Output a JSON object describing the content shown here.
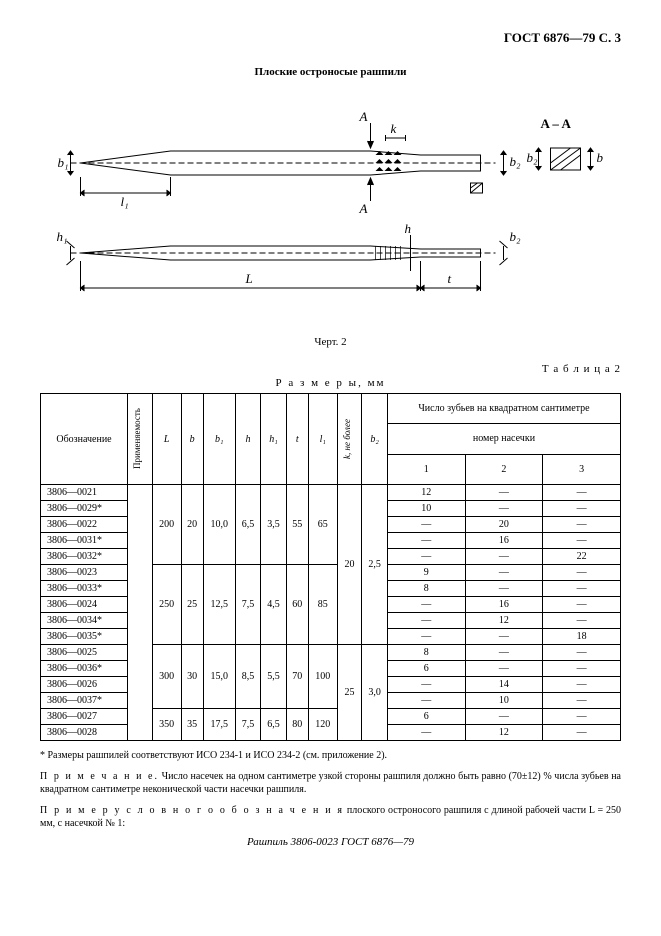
{
  "header": "ГОСТ 6876—79 С. 3",
  "title": "Плоские остроносые рашпили",
  "figcaption": "Черт. 2",
  "tablelabel": "Т а б л и ц а 2",
  "dimslabel": "Р а з м е р ы, мм",
  "diagram": {
    "labels": {
      "A": "A",
      "Am": "A",
      "AA": "A – A",
      "k": "k",
      "b1": "b₁",
      "b2": "b₂",
      "b": "b",
      "l1": "l₁",
      "h1": "h₁",
      "h": "h",
      "L": "L",
      "t": "t"
    }
  },
  "thead": {
    "c1": "Обозначение",
    "c2": "Применяемость",
    "c3": "L",
    "c4": "b",
    "c5": "b₁",
    "c6": "h",
    "c7": "h₁",
    "c8": "t",
    "c9": "l₁",
    "c10": "k, не более",
    "c11": "b₂",
    "teeth": "Число зубьев на квадратном сантиметре",
    "notch": "номер насечки",
    "n1": "1",
    "n2": "2",
    "n3": "3"
  },
  "rows": [
    {
      "d": "3806—0021",
      "n1": "12",
      "n2": "—",
      "n3": "—"
    },
    {
      "d": "3806—0029*",
      "n1": "10",
      "n2": "—",
      "n3": "—"
    },
    {
      "d": "3806—0022",
      "n1": "—",
      "n2": "20",
      "n3": "—"
    },
    {
      "d": "3806—0031*",
      "n1": "—",
      "n2": "16",
      "n3": "—"
    },
    {
      "d": "3806—0032*",
      "n1": "—",
      "n2": "—",
      "n3": "22"
    },
    {
      "d": "3806—0023",
      "n1": "9",
      "n2": "—",
      "n3": "—"
    },
    {
      "d": "3806—0033*",
      "n1": "8",
      "n2": "—",
      "n3": "—"
    },
    {
      "d": "3806—0024",
      "n1": "—",
      "n2": "16",
      "n3": "—"
    },
    {
      "d": "3806—0034*",
      "n1": "—",
      "n2": "12",
      "n3": "—"
    },
    {
      "d": "3806—0035*",
      "n1": "—",
      "n2": "—",
      "n3": "18"
    },
    {
      "d": "3806—0025",
      "n1": "8",
      "n2": "—",
      "n3": "—"
    },
    {
      "d": "3806—0036*",
      "n1": "6",
      "n2": "—",
      "n3": "—"
    },
    {
      "d": "3806—0026",
      "n1": "—",
      "n2": "14",
      "n3": "—"
    },
    {
      "d": "3806—0037*",
      "n1": "—",
      "n2": "10",
      "n3": "—"
    },
    {
      "d": "3806—0027",
      "n1": "6",
      "n2": "—",
      "n3": "—"
    },
    {
      "d": "3806—0028",
      "n1": "—",
      "n2": "12",
      "n3": "—"
    }
  ],
  "groups": [
    {
      "L": "200",
      "b": "20",
      "b1": "10,0",
      "h": "6,5",
      "h1": "3,5",
      "t": "55",
      "l1": "65",
      "span": 5
    },
    {
      "L": "250",
      "b": "25",
      "b1": "12,5",
      "h": "7,5",
      "h1": "4,5",
      "t": "60",
      "l1": "85",
      "span": 5
    },
    {
      "L": "300",
      "b": "30",
      "b1": "15,0",
      "h": "8,5",
      "h1": "5,5",
      "t": "70",
      "l1": "100",
      "span": 4
    },
    {
      "L": "350",
      "b": "35",
      "b1": "17,5",
      "h": "7,5",
      "h1": "6,5",
      "t": "80",
      "l1": "120",
      "span": 2
    }
  ],
  "kb": [
    {
      "k": "20",
      "b2": "2,5",
      "span": 10
    },
    {
      "k": "25",
      "b2": "3,0",
      "span": 6
    }
  ],
  "foot": {
    "star": "* Размеры рашпилей соответствуют ИСО 234-1 и ИСО 234-2 (см. приложение 2).",
    "noteLabel": "П р и м е ч а н и е.",
    "note": " Число насечек на одном сантиметре узкой стороны рашпиля должно быть равно (70±12) % числа зубьев на квадратном сантиметре неконической части насечки рашпиля.",
    "exLabel": "П р и м е р  у с л о в н о г о  о б о з н а ч е н и я",
    "ex": " плоского остроносого рашпиля с длиной рабочей части L = 250 мм, с насечкой № 1:",
    "exline": "Рашпиль 3806-0023 ГОСТ 6876—79"
  }
}
